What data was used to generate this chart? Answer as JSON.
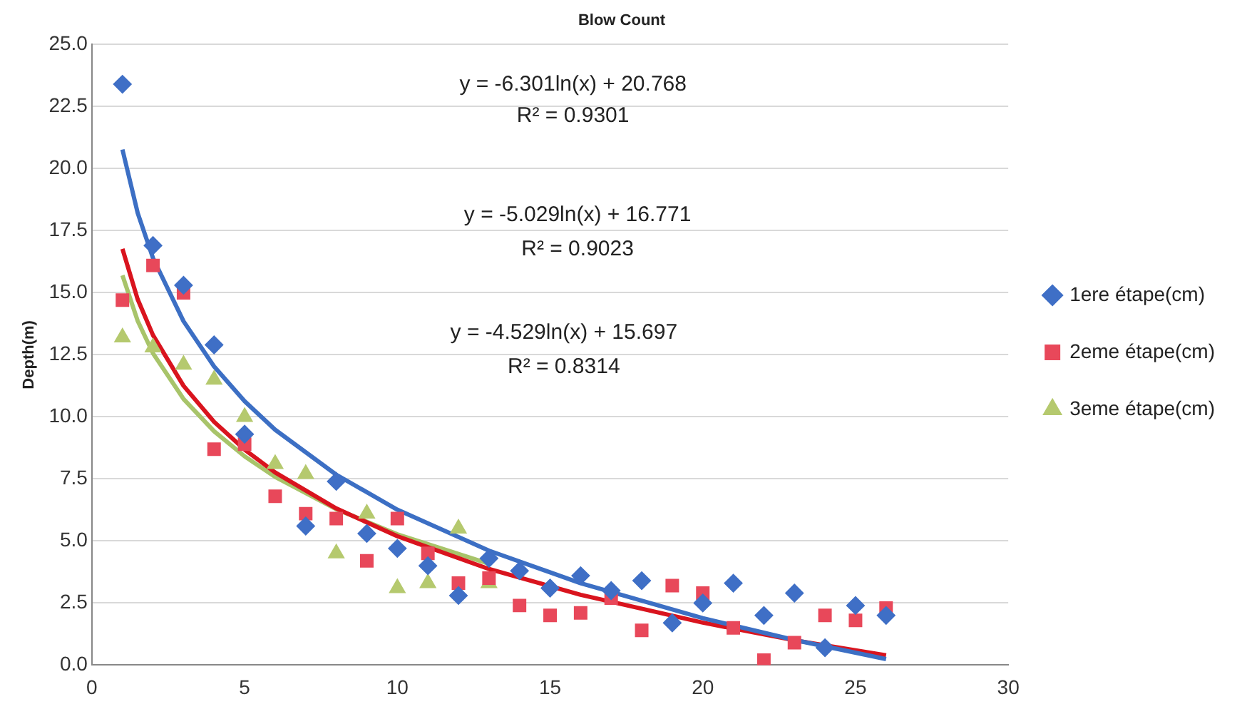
{
  "chart_data": {
    "type": "scatter",
    "title": "Blow Count",
    "ylabel": "Depth(m)",
    "xlim": [
      0,
      30
    ],
    "xticks": [
      0,
      5,
      10,
      15,
      20,
      25,
      30
    ],
    "ylim": [
      0,
      25
    ],
    "yticks": [
      {
        "value": 0,
        "label": "0.0"
      },
      {
        "value": 2.5,
        "label": "2.5"
      },
      {
        "value": 5,
        "label": "5.0"
      },
      {
        "value": 7.5,
        "label": "7.5"
      },
      {
        "value": 10,
        "label": "10.0"
      },
      {
        "value": 12.5,
        "label": "12.5"
      },
      {
        "value": 15,
        "label": "15.0"
      },
      {
        "value": 17.5,
        "label": "17.5"
      },
      {
        "value": 20,
        "label": "20.0"
      },
      {
        "value": 22.5,
        "label": "22.5"
      },
      {
        "value": 25,
        "label": "25.0"
      }
    ],
    "grid": "y",
    "legend": "right",
    "annotations": [
      "y = -6.301ln(x) + 20.768",
      "R² = 0.9301",
      "y = -5.029ln(x) + 16.771",
      "R² = 0.9023",
      "y = -4.529ln(x) + 15.697",
      "R² = 0.8314"
    ],
    "series": [
      {
        "name": "1ere étape(cm)",
        "marker": "diamond",
        "color": "#3f6fc6",
        "x": [
          1,
          2,
          3,
          4,
          5,
          6,
          7,
          8,
          9,
          10,
          11,
          12,
          13,
          14,
          15,
          16,
          17,
          18,
          19,
          20,
          21,
          22,
          23,
          24,
          25,
          26
        ],
        "values": [
          23.4,
          16.9,
          15.3,
          12.9,
          9.3,
          null,
          5.6,
          7.4,
          5.3,
          4.7,
          4.0,
          2.8,
          4.3,
          3.8,
          3.1,
          3.6,
          3.0,
          3.4,
          1.7,
          2.5,
          3.3,
          2.0,
          2.9,
          0.7,
          2.4,
          2.0
        ]
      },
      {
        "name": "2eme étape(cm)",
        "marker": "square",
        "color": "#e8485a",
        "x": [
          1,
          2,
          3,
          4,
          5,
          6,
          7,
          8,
          9,
          10,
          11,
          12,
          13,
          14,
          15,
          16,
          17,
          18,
          19,
          20,
          21,
          22,
          23,
          24,
          25,
          26
        ],
        "values": [
          14.7,
          16.1,
          15.0,
          8.7,
          8.9,
          6.8,
          6.1,
          5.9,
          4.2,
          5.9,
          4.5,
          3.3,
          3.5,
          2.4,
          2.0,
          2.1,
          2.7,
          1.4,
          3.2,
          2.9,
          1.5,
          0.2,
          0.9,
          2.0,
          1.8,
          2.3
        ]
      },
      {
        "name": "3eme étape(cm)",
        "marker": "triangle",
        "color": "#b5c96e",
        "x": [
          1,
          2,
          3,
          4,
          5,
          6,
          7,
          8,
          9,
          10,
          11,
          12,
          13
        ],
        "values": [
          13.2,
          12.8,
          12.1,
          11.5,
          10.0,
          8.1,
          7.7,
          4.5,
          6.1,
          3.1,
          3.3,
          5.5,
          3.3
        ]
      },
      {
        "type": "line",
        "marker": "none",
        "color": "#3c6fc4",
        "x": [
          1,
          1.5,
          2,
          3,
          4,
          5,
          6,
          8,
          10,
          13,
          16,
          20,
          23,
          26
        ],
        "values": [
          20.77,
          18.21,
          16.4,
          13.85,
          12.03,
          10.63,
          9.48,
          7.67,
          6.26,
          4.61,
          3.3,
          1.89,
          1.01,
          0.24
        ]
      },
      {
        "type": "line",
        "marker": "none",
        "color": "#d9141e",
        "x": [
          1,
          1.5,
          2,
          3,
          4,
          5,
          6,
          8,
          10,
          13,
          16,
          20,
          23,
          26
        ],
        "values": [
          16.77,
          14.73,
          13.29,
          11.25,
          9.8,
          8.68,
          7.76,
          6.31,
          5.19,
          3.87,
          2.83,
          1.71,
          1.0,
          0.39
        ]
      },
      {
        "type": "line",
        "marker": "none",
        "color": "#a8c46a",
        "x": [
          1,
          1.5,
          2,
          3,
          4,
          5,
          6,
          8,
          10,
          13
        ],
        "values": [
          15.7,
          13.86,
          12.56,
          10.72,
          9.42,
          8.41,
          7.58,
          6.28,
          5.27,
          4.08
        ]
      }
    ]
  }
}
